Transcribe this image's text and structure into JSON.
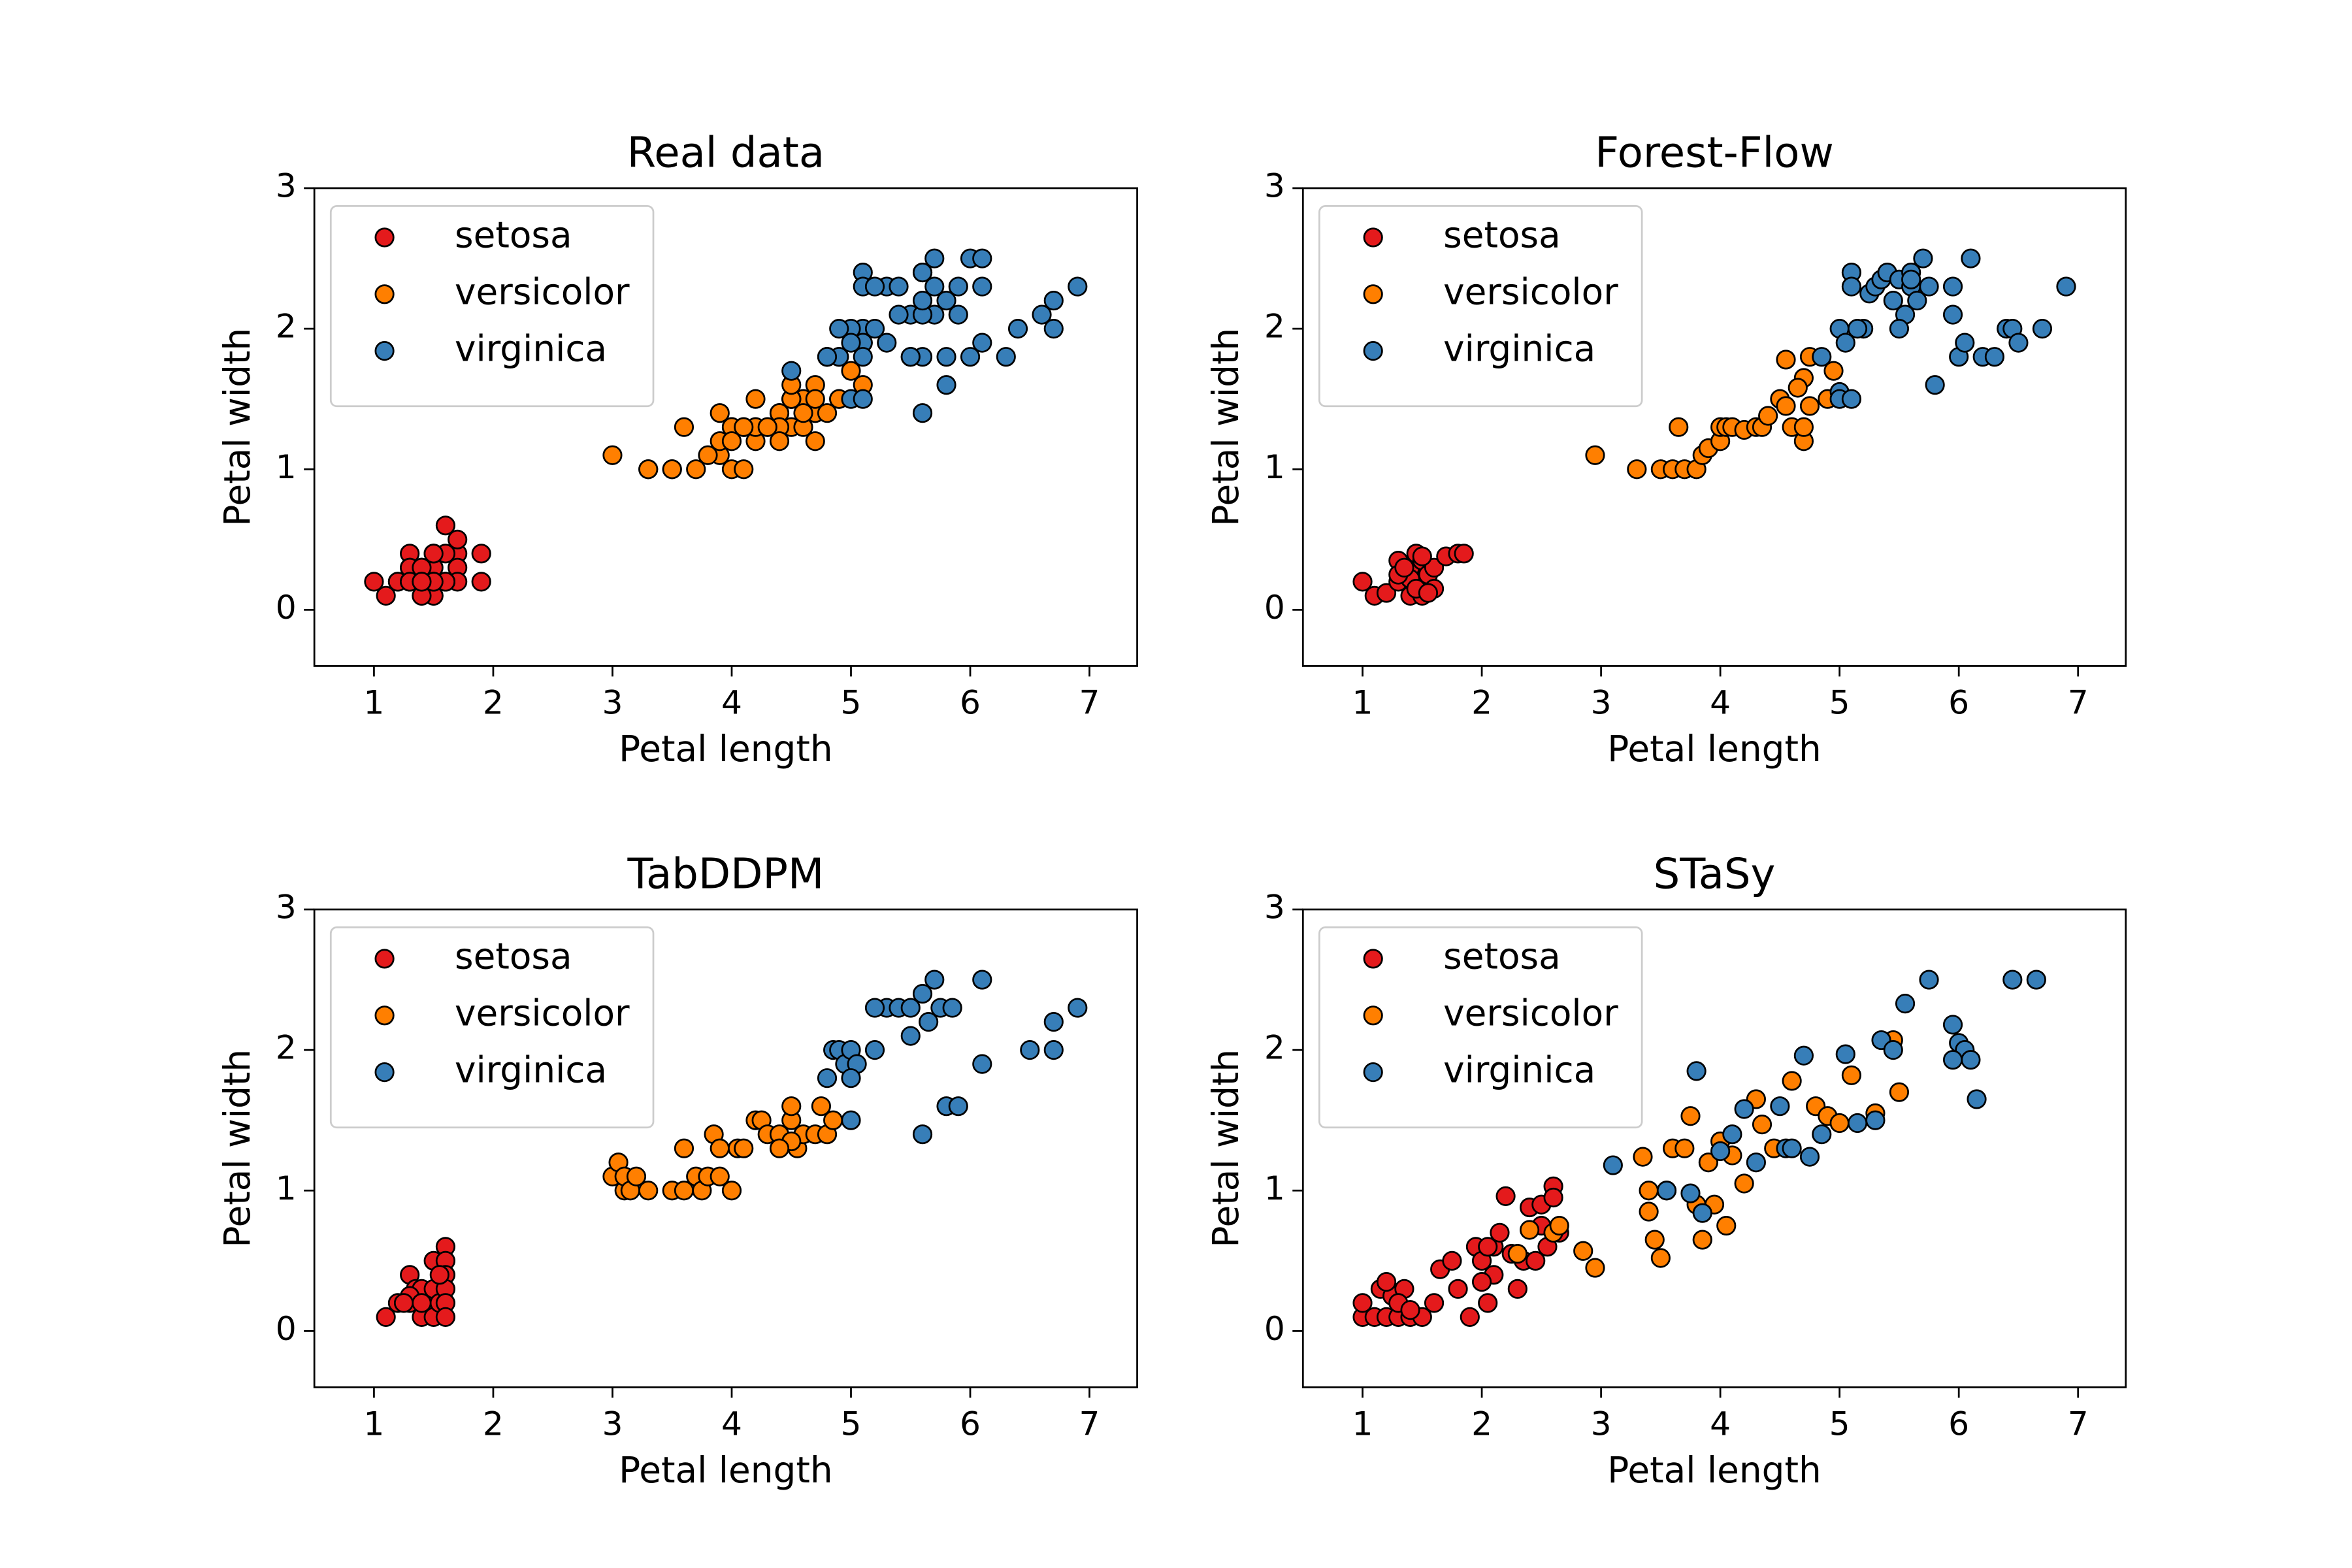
{
  "chart_data": [
    {
      "type": "scatter",
      "title": "Real data",
      "x_label": "Petal length",
      "y_label": "Petal width",
      "xlim": [
        0.5,
        7.4
      ],
      "ylim": [
        -0.4,
        3
      ],
      "xticks": [
        1,
        2,
        3,
        4,
        5,
        6,
        7
      ],
      "yticks": [
        0,
        1,
        2,
        3
      ],
      "legend": "upper left",
      "grid": false,
      "series": [
        {
          "name": "setosa",
          "color": "#e41a1c",
          "x": [
            1.4,
            1.4,
            1.3,
            1.5,
            1.4,
            1.7,
            1.4,
            1.5,
            1.4,
            1.5,
            1.5,
            1.6,
            1.4,
            1.1,
            1.2,
            1.5,
            1.3,
            1.4,
            1.7,
            1.5,
            1.7,
            1.5,
            1.0,
            1.7,
            1.9,
            1.6,
            1.6,
            1.5,
            1.4,
            1.6,
            1.6,
            1.5,
            1.5,
            1.4,
            1.5,
            1.2,
            1.3,
            1.4,
            1.3,
            1.5,
            1.3,
            1.3,
            1.3,
            1.6,
            1.9,
            1.4,
            1.6,
            1.4,
            1.5,
            1.4
          ],
          "values": [
            0.2,
            0.2,
            0.2,
            0.2,
            0.2,
            0.4,
            0.3,
            0.2,
            0.2,
            0.1,
            0.2,
            0.2,
            0.1,
            0.1,
            0.2,
            0.4,
            0.4,
            0.3,
            0.3,
            0.3,
            0.2,
            0.4,
            0.2,
            0.5,
            0.2,
            0.2,
            0.4,
            0.2,
            0.2,
            0.2,
            0.2,
            0.4,
            0.1,
            0.2,
            0.2,
            0.2,
            0.2,
            0.1,
            0.2,
            0.2,
            0.3,
            0.3,
            0.2,
            0.6,
            0.4,
            0.3,
            0.2,
            0.2,
            0.2,
            0.2
          ]
        },
        {
          "name": "versicolor",
          "color": "#ff7f00",
          "x": [
            4.7,
            4.5,
            4.9,
            4.0,
            4.6,
            4.5,
            4.7,
            3.3,
            4.6,
            3.9,
            3.5,
            4.2,
            4.0,
            4.7,
            3.6,
            4.4,
            4.5,
            4.1,
            4.5,
            3.9,
            4.8,
            4.0,
            4.9,
            4.7,
            4.3,
            4.4,
            4.8,
            5.0,
            4.5,
            3.5,
            3.8,
            3.7,
            3.9,
            5.1,
            4.5,
            4.5,
            4.7,
            4.4,
            4.1,
            4.0,
            4.4,
            4.6,
            4.0,
            3.3,
            4.2,
            4.2,
            4.2,
            4.3,
            3.0,
            4.1
          ],
          "values": [
            1.4,
            1.5,
            1.5,
            1.3,
            1.5,
            1.3,
            1.6,
            1.0,
            1.3,
            1.4,
            1.0,
            1.5,
            1.0,
            1.4,
            1.3,
            1.4,
            1.5,
            1.0,
            1.5,
            1.1,
            1.8,
            1.3,
            1.5,
            1.2,
            1.3,
            1.4,
            1.4,
            1.7,
            1.5,
            1.0,
            1.1,
            1.0,
            1.2,
            1.6,
            1.5,
            1.6,
            1.5,
            1.3,
            1.3,
            1.3,
            1.2,
            1.4,
            1.2,
            1.0,
            1.3,
            1.2,
            1.3,
            1.3,
            1.1,
            1.3
          ]
        },
        {
          "name": "virginica",
          "color": "#377eb8",
          "x": [
            6.0,
            5.1,
            5.9,
            5.6,
            5.8,
            6.6,
            4.5,
            6.3,
            5.8,
            6.1,
            5.1,
            5.3,
            5.5,
            5.0,
            5.1,
            5.3,
            5.5,
            6.7,
            6.9,
            5.0,
            5.7,
            4.9,
            6.7,
            4.9,
            5.7,
            6.0,
            4.8,
            4.9,
            5.6,
            5.8,
            6.1,
            6.4,
            5.6,
            5.1,
            5.6,
            6.1,
            5.6,
            5.5,
            4.8,
            5.4,
            5.6,
            5.1,
            5.1,
            5.9,
            5.7,
            5.2,
            5.0,
            5.2,
            5.4,
            5.1
          ],
          "values": [
            2.5,
            1.9,
            2.1,
            1.8,
            2.2,
            2.1,
            1.7,
            1.8,
            1.8,
            2.5,
            2.0,
            1.9,
            2.1,
            2.0,
            2.4,
            2.3,
            1.8,
            2.2,
            2.3,
            1.5,
            2.3,
            2.0,
            2.0,
            1.8,
            2.1,
            1.8,
            1.8,
            1.8,
            2.1,
            1.6,
            1.9,
            2.0,
            2.2,
            1.5,
            1.4,
            2.3,
            2.4,
            1.8,
            1.8,
            2.1,
            2.4,
            2.3,
            1.9,
            2.3,
            2.5,
            2.3,
            1.9,
            2.0,
            2.3,
            1.8
          ]
        }
      ]
    },
    {
      "type": "scatter",
      "title": "Forest-Flow",
      "x_label": "Petal length",
      "y_label": "Petal width",
      "xlim": [
        0.5,
        7.4
      ],
      "ylim": [
        -0.4,
        3
      ],
      "xticks": [
        1,
        2,
        3,
        4,
        5,
        6,
        7
      ],
      "yticks": [
        0,
        1,
        2,
        3
      ],
      "legend": "upper left",
      "grid": false,
      "series": [
        {
          "name": "setosa",
          "color": "#e41a1c",
          "x": [
            1.0,
            1.1,
            1.2,
            1.3,
            1.3,
            1.35,
            1.4,
            1.4,
            1.45,
            1.5,
            1.5,
            1.5,
            1.55,
            1.6,
            1.6,
            1.7,
            1.8,
            1.85,
            1.4,
            1.3,
            1.5,
            1.45,
            1.35,
            1.55
          ],
          "values": [
            0.2,
            0.1,
            0.12,
            0.2,
            0.35,
            0.28,
            0.1,
            0.3,
            0.4,
            0.2,
            0.35,
            0.1,
            0.25,
            0.15,
            0.3,
            0.38,
            0.4,
            0.4,
            0.22,
            0.25,
            0.38,
            0.15,
            0.3,
            0.12
          ]
        },
        {
          "name": "versicolor",
          "color": "#ff7f00",
          "x": [
            2.95,
            3.3,
            3.5,
            3.6,
            3.65,
            3.7,
            3.8,
            3.85,
            3.9,
            4.0,
            4.0,
            4.05,
            4.1,
            4.2,
            4.3,
            4.35,
            4.4,
            4.5,
            4.55,
            4.6,
            4.7,
            4.7,
            4.7,
            4.75,
            4.75,
            4.9,
            4.95,
            4.55,
            4.65
          ],
          "values": [
            1.1,
            1.0,
            1.0,
            1.0,
            1.3,
            1.0,
            1.0,
            1.1,
            1.15,
            1.2,
            1.3,
            1.3,
            1.3,
            1.28,
            1.3,
            1.3,
            1.38,
            1.5,
            1.78,
            1.3,
            1.2,
            1.3,
            1.65,
            1.45,
            1.8,
            1.5,
            1.7,
            1.45,
            1.58
          ]
        },
        {
          "name": "virginica",
          "color": "#377eb8",
          "x": [
            4.85,
            5.0,
            5.0,
            5.05,
            5.1,
            5.1,
            5.2,
            5.25,
            5.3,
            5.35,
            5.4,
            5.45,
            5.5,
            5.55,
            5.6,
            5.6,
            5.65,
            5.7,
            5.75,
            5.8,
            5.95,
            6.0,
            6.05,
            6.1,
            6.2,
            6.3,
            6.4,
            6.45,
            6.5,
            6.7,
            6.9,
            5.95,
            5.0,
            5.1,
            5.15,
            5.5,
            5.6
          ],
          "values": [
            1.8,
            2.0,
            1.55,
            1.9,
            2.4,
            2.3,
            2.0,
            2.25,
            2.3,
            2.35,
            2.4,
            2.2,
            2.35,
            2.1,
            2.3,
            2.4,
            2.2,
            2.5,
            2.3,
            1.6,
            2.1,
            1.8,
            1.9,
            2.5,
            1.8,
            1.8,
            2.0,
            2.0,
            1.9,
            2.0,
            2.3,
            2.3,
            1.5,
            1.5,
            2.0,
            2.0,
            2.35
          ]
        }
      ]
    },
    {
      "type": "scatter",
      "title": "TabDDPM",
      "x_label": "Petal length",
      "y_label": "Petal width",
      "xlim": [
        0.5,
        7.4
      ],
      "ylim": [
        -0.4,
        3
      ],
      "xticks": [
        1,
        2,
        3,
        4,
        5,
        6,
        7
      ],
      "yticks": [
        0,
        1,
        2,
        3
      ],
      "legend": "upper left",
      "grid": false,
      "series": [
        {
          "name": "setosa",
          "color": "#e41a1c",
          "x": [
            1.1,
            1.2,
            1.3,
            1.3,
            1.35,
            1.4,
            1.4,
            1.45,
            1.5,
            1.5,
            1.5,
            1.55,
            1.6,
            1.6,
            1.6,
            1.6,
            1.6,
            1.6,
            1.3,
            1.4,
            1.25,
            1.55
          ],
          "values": [
            0.1,
            0.2,
            0.2,
            0.4,
            0.3,
            0.3,
            0.1,
            0.2,
            0.5,
            0.3,
            0.1,
            0.2,
            0.6,
            0.5,
            0.4,
            0.3,
            0.2,
            0.1,
            0.25,
            0.2,
            0.2,
            0.4
          ]
        },
        {
          "name": "versicolor",
          "color": "#ff7f00",
          "x": [
            3.0,
            3.05,
            3.1,
            3.1,
            3.15,
            3.2,
            3.3,
            3.5,
            3.6,
            3.6,
            3.7,
            3.75,
            3.8,
            3.85,
            3.9,
            3.9,
            4.0,
            4.05,
            4.1,
            4.2,
            4.25,
            4.3,
            4.4,
            4.5,
            4.5,
            4.55,
            4.6,
            4.7,
            4.75,
            4.8,
            4.5,
            4.4,
            4.85
          ],
          "values": [
            1.1,
            1.2,
            1.0,
            1.1,
            1.0,
            1.1,
            1.0,
            1.0,
            1.0,
            1.3,
            1.1,
            1.0,
            1.1,
            1.4,
            1.3,
            1.1,
            1.0,
            1.3,
            1.3,
            1.5,
            1.5,
            1.4,
            1.4,
            1.5,
            1.6,
            1.3,
            1.4,
            1.4,
            1.6,
            1.4,
            1.35,
            1.3,
            1.5
          ]
        },
        {
          "name": "virginica",
          "color": "#377eb8",
          "x": [
            4.8,
            4.85,
            4.9,
            4.95,
            5.0,
            5.0,
            5.05,
            5.2,
            5.3,
            5.4,
            5.5,
            5.5,
            5.6,
            5.65,
            5.7,
            5.75,
            5.8,
            5.85,
            5.9,
            6.1,
            6.1,
            6.5,
            6.7,
            6.7,
            6.9,
            5.6,
            5.0,
            5.2
          ],
          "values": [
            1.8,
            2.0,
            2.0,
            1.9,
            2.0,
            1.5,
            1.9,
            2.0,
            2.3,
            2.3,
            2.3,
            2.1,
            2.4,
            2.2,
            2.5,
            2.3,
            1.6,
            2.3,
            1.6,
            2.5,
            1.9,
            2.0,
            2.2,
            2.0,
            2.3,
            1.4,
            1.8,
            2.3
          ]
        }
      ]
    },
    {
      "type": "scatter",
      "title": "STaSy",
      "x_label": "Petal length",
      "y_label": "Petal width",
      "xlim": [
        0.5,
        7.4
      ],
      "ylim": [
        -0.4,
        3
      ],
      "xticks": [
        1,
        2,
        3,
        4,
        5,
        6,
        7
      ],
      "yticks": [
        0,
        1,
        2,
        3
      ],
      "legend": "upper left",
      "grid": false,
      "series": [
        {
          "name": "setosa",
          "color": "#e41a1c",
          "x": [
            1.0,
            1.0,
            1.1,
            1.15,
            1.2,
            1.25,
            1.3,
            1.35,
            1.4,
            1.5,
            1.6,
            1.65,
            1.75,
            1.8,
            1.9,
            1.95,
            2.0,
            2.05,
            2.1,
            2.1,
            2.15,
            2.2,
            2.25,
            2.3,
            2.35,
            2.4,
            2.45,
            2.5,
            2.55,
            2.6,
            2.6,
            2.65,
            1.2,
            1.3,
            1.4,
            2.0,
            2.5,
            2.05
          ],
          "values": [
            0.1,
            0.2,
            0.1,
            0.3,
            0.1,
            0.25,
            0.1,
            0.3,
            0.1,
            0.1,
            0.2,
            0.44,
            0.5,
            0.3,
            0.1,
            0.6,
            0.5,
            0.2,
            0.4,
            0.6,
            0.7,
            0.96,
            0.55,
            0.3,
            0.5,
            0.88,
            0.5,
            0.9,
            0.6,
            1.03,
            0.95,
            0.7,
            0.35,
            0.2,
            0.15,
            0.35,
            0.75,
            0.6
          ]
        },
        {
          "name": "versicolor",
          "color": "#ff7f00",
          "x": [
            2.3,
            2.4,
            2.6,
            2.65,
            2.85,
            2.95,
            3.35,
            3.4,
            3.45,
            3.5,
            3.55,
            3.6,
            3.7,
            3.75,
            3.8,
            3.85,
            3.9,
            3.95,
            4.0,
            4.05,
            4.1,
            4.2,
            4.3,
            4.35,
            4.45,
            4.6,
            4.8,
            4.9,
            5.0,
            5.1,
            5.3,
            5.5,
            5.45,
            3.4
          ],
          "values": [
            0.55,
            0.72,
            0.7,
            0.75,
            0.57,
            0.45,
            1.24,
            0.85,
            0.65,
            0.52,
            1.0,
            1.3,
            1.3,
            1.53,
            0.9,
            0.65,
            1.2,
            0.9,
            1.35,
            0.75,
            1.25,
            1.05,
            1.65,
            1.47,
            1.3,
            1.78,
            1.6,
            1.53,
            1.48,
            1.82,
            1.55,
            1.7,
            2.07,
            1.0
          ]
        },
        {
          "name": "virginica",
          "color": "#377eb8",
          "x": [
            3.1,
            3.55,
            3.8,
            3.85,
            4.0,
            4.1,
            4.2,
            4.3,
            4.5,
            4.55,
            4.6,
            4.7,
            4.75,
            4.85,
            5.05,
            5.15,
            5.3,
            5.35,
            5.45,
            5.55,
            5.75,
            5.95,
            6.0,
            6.05,
            6.15,
            6.1,
            6.45,
            6.65,
            5.95,
            3.75
          ],
          "values": [
            1.18,
            1.0,
            1.85,
            0.84,
            1.28,
            1.4,
            1.58,
            1.2,
            1.6,
            1.3,
            1.3,
            1.96,
            1.24,
            1.4,
            1.97,
            1.48,
            1.5,
            2.07,
            2.0,
            2.33,
            2.5,
            2.18,
            2.05,
            2.0,
            1.65,
            1.93,
            2.5,
            2.5,
            1.93,
            0.98
          ]
        }
      ]
    }
  ]
}
